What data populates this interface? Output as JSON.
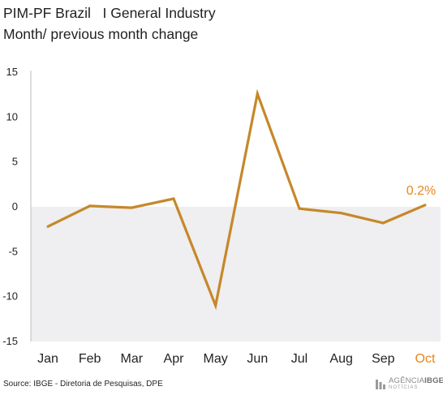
{
  "header": {
    "title_line1": "PIM-PF Brazil   I General Industry",
    "title_line2": "Month/ previous month change"
  },
  "chart_data": {
    "type": "line",
    "title": "PIM-PF Brazil   I General Industry",
    "subtitle": "Month/ previous month change",
    "categories": [
      "Jan",
      "Feb",
      "Mar",
      "Apr",
      "May",
      "Jun",
      "Jul",
      "Aug",
      "Sep",
      "Oct"
    ],
    "series": [
      {
        "values": [
          -2.2,
          0.1,
          -0.1,
          0.9,
          -11.0,
          12.6,
          -0.2,
          -0.7,
          -1.8,
          0.2
        ]
      }
    ],
    "ylim": [
      -15,
      15
    ],
    "yticks": [
      15,
      10,
      5,
      0,
      -5,
      -10,
      -15
    ],
    "highlight_category": "Oct",
    "data_label": "0.2%",
    "negative_region_shaded": true,
    "grid": false
  },
  "colors": {
    "line": "#c5882a",
    "highlight": "#e8861a",
    "negative_shade": "#efeef0",
    "axis": "#bdbdbd"
  },
  "footer": {
    "source": "Source: IBGE - Diretoria de Pesquisas, DPE",
    "logo_prefix": "AGÊNCIA",
    "logo_brand": "IBGE",
    "logo_sub": "NOTÍCIAS"
  }
}
